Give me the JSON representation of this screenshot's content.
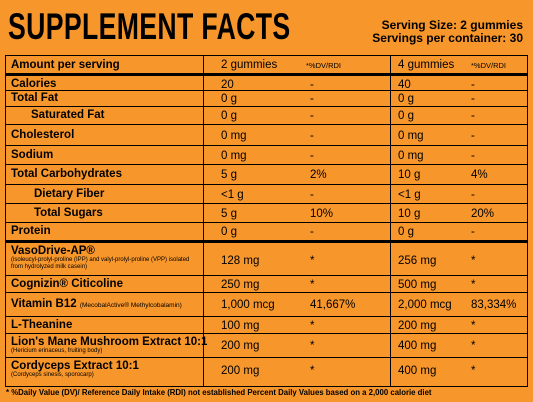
{
  "header": {
    "title": "SUPPLEMENT FACTS",
    "serving_size": "Serving Size:  2 gummies",
    "servings_per_container": "Servings per container: 30"
  },
  "table": {
    "columns": [
      "Amount per serving",
      "2 gummies",
      "*%DV/RDI",
      "4 gummies",
      "*%DV/RDI"
    ],
    "rows": [
      {
        "name": "Calories",
        "amount_2": "20",
        "dv_2": "-",
        "amount_4": "40",
        "dv_4": "-"
      },
      {
        "name": "Total Fat",
        "amount_2": "0 g",
        "dv_2": "-",
        "amount_4": "0 g",
        "dv_4": "-"
      },
      {
        "name": "Saturated Fat",
        "amount_2": "0 g",
        "dv_2": "-",
        "amount_4": "0 g",
        "dv_4": "-"
      },
      {
        "name": "Cholesterol",
        "amount_2": "0 mg",
        "dv_2": "-",
        "amount_4": "0 mg",
        "dv_4": "-"
      },
      {
        "name": "Sodium",
        "amount_2": "0 mg",
        "dv_2": "-",
        "amount_4": "0 mg",
        "dv_4": "-"
      },
      {
        "name": "Total Carbohydrates",
        "amount_2": "5 g",
        "dv_2": "2%",
        "amount_4": "10 g",
        "dv_4": "4%"
      },
      {
        "name": "Dietary Fiber",
        "amount_2": "<1 g",
        "dv_2": "-",
        "amount_4": "<1 g",
        "dv_4": "-"
      },
      {
        "name": "Total Sugars",
        "amount_2": "5 g",
        "dv_2": "10%",
        "amount_4": "10 g",
        "dv_4": "20%"
      },
      {
        "name": "Protein",
        "amount_2": "0 g",
        "dv_2": "-",
        "amount_4": "0 g",
        "dv_4": "-"
      },
      {
        "name": "VasoDrive-AP®",
        "note": "(isoleucyl-prolyl-proline (IPP) and valyl-prolyl-proline (VPP) isolated from hydrolyzed milk casein)",
        "amount_2": "128 mg",
        "dv_2": "*",
        "amount_4": "256 mg",
        "dv_4": "*"
      },
      {
        "name": "Cognizin® Citicoline",
        "amount_2": "250 mg",
        "dv_2": "*",
        "amount_4": "500 mg",
        "dv_4": "*"
      },
      {
        "name": "Vitamin B12",
        "note": "(MecobalActive® Methylcobalamin)",
        "amount_2": "1,000 mcg",
        "dv_2": "41,667%",
        "amount_4": "2,000 mcg",
        "dv_4": "83,334%"
      },
      {
        "name": "L-Theanine",
        "amount_2": "100 mg",
        "dv_2": "*",
        "amount_4": "200 mg",
        "dv_4": "*"
      },
      {
        "name": "Lion's Mane Mushroom Extract 10:1",
        "note": "(Hericium erinaceus, fruiting body)",
        "amount_2": "200 mg",
        "dv_2": "*",
        "amount_4": "400 mg",
        "dv_4": "*"
      },
      {
        "name": "Cordyceps Extract 10:1",
        "note": "(Cordyceps sinesis, sporocarp)",
        "amount_2": "200 mg",
        "dv_2": "*",
        "amount_4": "400 mg",
        "dv_4": "*"
      }
    ]
  },
  "footnote": "* %Daily Value (DV)/ Reference Daily Intake (RDI) not established Percent Daily Values based on a 2,000 calorie diet"
}
